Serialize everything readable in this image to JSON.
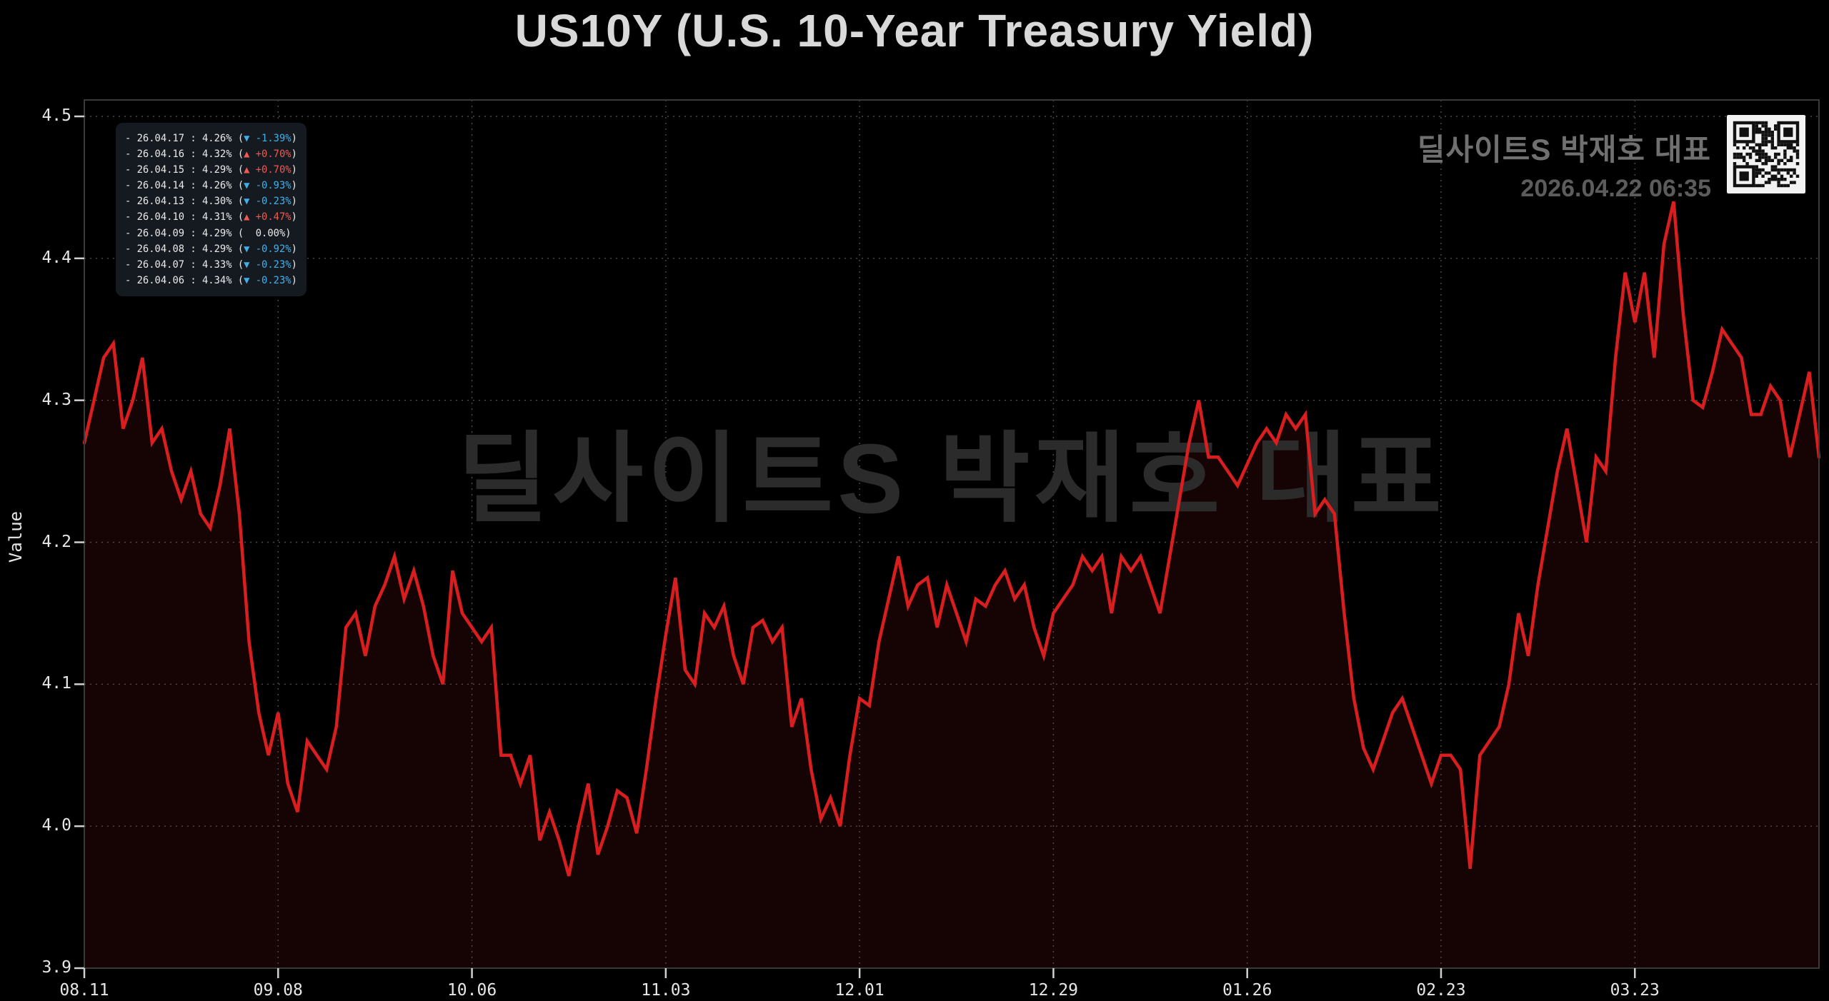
{
  "title": "US10Y (U.S. 10-Year Treasury Yield)",
  "watermark": {
    "text": "딜사이트S 박재호 대표"
  },
  "brand": {
    "name": "딜사이트S 박재호 대표",
    "timestamp": "2026.04.22 06:35"
  },
  "axes": {
    "ylabel": "Value"
  },
  "colors": {
    "background": "#000000",
    "line": "#d81e1e",
    "fill": "#d81e1e",
    "fill_opacity": 0.1,
    "grid": "#4c4c4c",
    "spine": "#3a3a3a",
    "tick": "#d0d0d0",
    "text": "#e6e6e6",
    "title_text": "#d9d9d9",
    "watermark_text": "#2b2b2b",
    "brand_text": "#707070",
    "legend_bg": "#151a21",
    "legend_up": "#ef5a52",
    "legend_down": "#41b0ea",
    "legend_text": "#eaeaea",
    "qr_bg": "#f2f2f2",
    "qr_fg": "#111111"
  },
  "legend": {
    "prefix": "-",
    "up_arrow": "▲",
    "down_arrow": "▼",
    "rows": [
      {
        "date": "26.04.17",
        "value": "4.26%",
        "direction": "down",
        "change": "-1.39%"
      },
      {
        "date": "26.04.16",
        "value": "4.32%",
        "direction": "up",
        "change": "+0.70%"
      },
      {
        "date": "26.04.15",
        "value": "4.29%",
        "direction": "up",
        "change": "+0.70%"
      },
      {
        "date": "26.04.14",
        "value": "4.26%",
        "direction": "down",
        "change": "-0.93%"
      },
      {
        "date": "26.04.13",
        "value": "4.30%",
        "direction": "down",
        "change": "-0.23%"
      },
      {
        "date": "26.04.10",
        "value": "4.31%",
        "direction": "up",
        "change": "+0.47%"
      },
      {
        "date": "26.04.09",
        "value": "4.29%",
        "direction": "flat",
        "change": "0.00%"
      },
      {
        "date": "26.04.08",
        "value": "4.29%",
        "direction": "down",
        "change": "-0.92%"
      },
      {
        "date": "26.04.07",
        "value": "4.33%",
        "direction": "down",
        "change": "-0.23%"
      },
      {
        "date": "26.04.06",
        "value": "4.34%",
        "direction": "down",
        "change": "-0.23%"
      }
    ]
  },
  "chart_data": {
    "type": "line",
    "title": "US10Y (U.S. 10-Year Treasury Yield)",
    "series_name": "US10Y",
    "ylabel": "Value",
    "xlabel": "",
    "grid": true,
    "legend_position": "upper left",
    "ylim": [
      3.9,
      4.5
    ],
    "y_ticks": [
      3.9,
      4.0,
      4.1,
      4.2,
      4.3,
      4.4,
      4.5
    ],
    "x_tick_labels": [
      "08.11",
      "09.08",
      "10.06",
      "11.03",
      "12.01",
      "12.29",
      "01.26",
      "02.23",
      "03.23"
    ],
    "x_tick_indices": [
      0,
      20,
      40,
      60,
      80,
      100,
      120,
      140,
      160
    ],
    "x_unit": "trading-day index (daily series 2025.08.11 – 2026.04.17)",
    "values": [
      4.27,
      4.3,
      4.33,
      4.34,
      4.28,
      4.3,
      4.33,
      4.27,
      4.28,
      4.25,
      4.23,
      4.25,
      4.22,
      4.21,
      4.24,
      4.28,
      4.22,
      4.13,
      4.08,
      4.05,
      4.08,
      4.03,
      4.01,
      4.06,
      4.05,
      4.04,
      4.07,
      4.14,
      4.15,
      4.12,
      4.155,
      4.17,
      4.19,
      4.16,
      4.18,
      4.155,
      4.12,
      4.1,
      4.18,
      4.15,
      4.14,
      4.13,
      4.14,
      4.05,
      4.05,
      4.03,
      4.05,
      3.99,
      4.01,
      3.99,
      3.965,
      4.0,
      4.03,
      3.98,
      4.0,
      4.025,
      4.02,
      3.995,
      4.04,
      4.09,
      4.135,
      4.175,
      4.11,
      4.1,
      4.15,
      4.14,
      4.155,
      4.12,
      4.1,
      4.14,
      4.145,
      4.13,
      4.14,
      4.07,
      4.09,
      4.04,
      4.005,
      4.02,
      4.0,
      4.05,
      4.09,
      4.085,
      4.13,
      4.16,
      4.19,
      4.155,
      4.17,
      4.175,
      4.14,
      4.17,
      4.15,
      4.13,
      4.16,
      4.155,
      4.17,
      4.18,
      4.16,
      4.17,
      4.14,
      4.12,
      4.15,
      4.16,
      4.17,
      4.19,
      4.18,
      4.19,
      4.15,
      4.19,
      4.18,
      4.19,
      4.17,
      4.15,
      4.19,
      4.23,
      4.27,
      4.3,
      4.26,
      4.26,
      4.25,
      4.24,
      4.255,
      4.27,
      4.28,
      4.27,
      4.29,
      4.28,
      4.29,
      4.22,
      4.23,
      4.22,
      4.15,
      4.09,
      4.055,
      4.04,
      4.06,
      4.08,
      4.09,
      4.07,
      4.05,
      4.03,
      4.05,
      4.05,
      4.04,
      3.97,
      4.05,
      4.06,
      4.07,
      4.1,
      4.15,
      4.12,
      4.17,
      4.21,
      4.25,
      4.28,
      4.24,
      4.2,
      4.26,
      4.25,
      4.33,
      4.39,
      4.355,
      4.39,
      4.33,
      4.41,
      4.44,
      4.36,
      4.3,
      4.295,
      4.32,
      4.35,
      4.34,
      4.33,
      4.29,
      4.29,
      4.31,
      4.3,
      4.26,
      4.29,
      4.32,
      4.26
    ]
  }
}
